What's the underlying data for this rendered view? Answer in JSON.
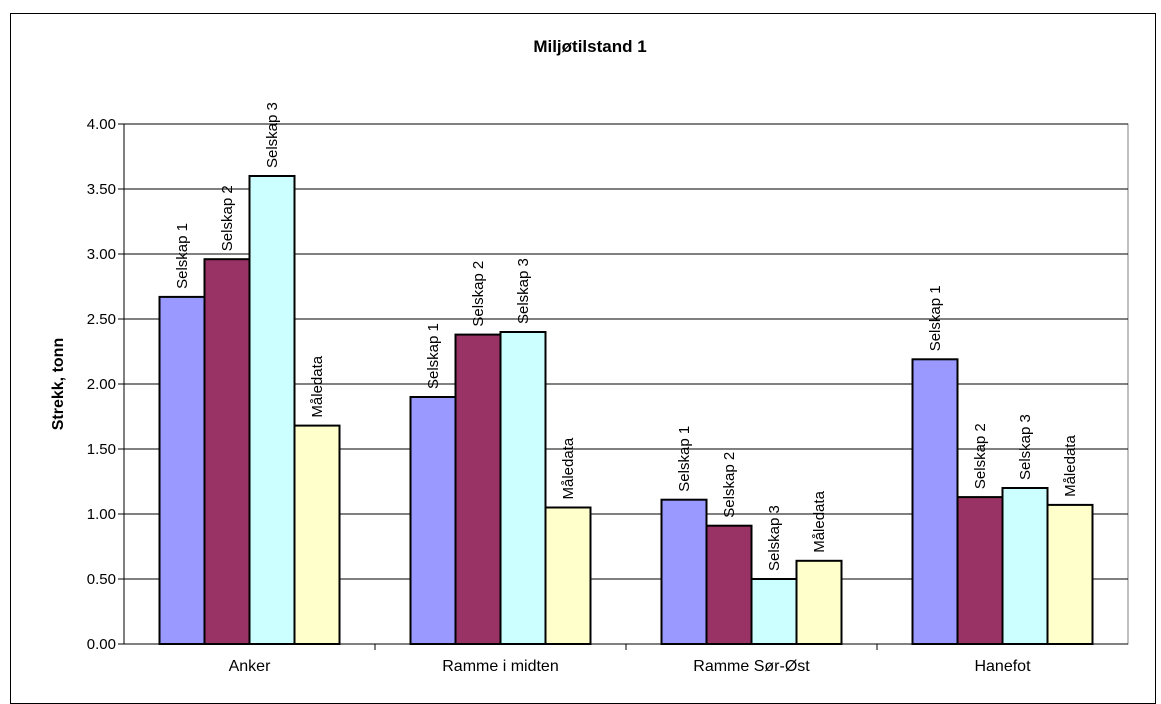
{
  "chart_data": {
    "type": "bar",
    "title": "Miljøtilstand 1",
    "xlabel": "",
    "ylabel": "Strekk, tonn",
    "ylim": [
      0,
      4
    ],
    "yticks": [
      "0.00",
      "0.50",
      "1.00",
      "1.50",
      "2.00",
      "2.50",
      "3.00",
      "3.50",
      "4.00"
    ],
    "grid": true,
    "legend": "none",
    "categories": [
      "Anker",
      "Ramme i midten",
      "Ramme Sør-Øst",
      "Hanefot"
    ],
    "series": [
      {
        "name": "Selskap 1",
        "color": "#9999ff",
        "values": [
          2.67,
          1.9,
          1.11,
          2.19
        ]
      },
      {
        "name": "Selskap 2",
        "color": "#993366",
        "values": [
          2.96,
          2.38,
          0.91,
          1.13
        ]
      },
      {
        "name": "Selskap 3",
        "color": "#ccffff",
        "values": [
          3.6,
          2.4,
          0.5,
          1.2
        ]
      },
      {
        "name": "Måledata",
        "color": "#ffffcc",
        "values": [
          1.68,
          1.05,
          0.64,
          1.07
        ]
      }
    ]
  }
}
